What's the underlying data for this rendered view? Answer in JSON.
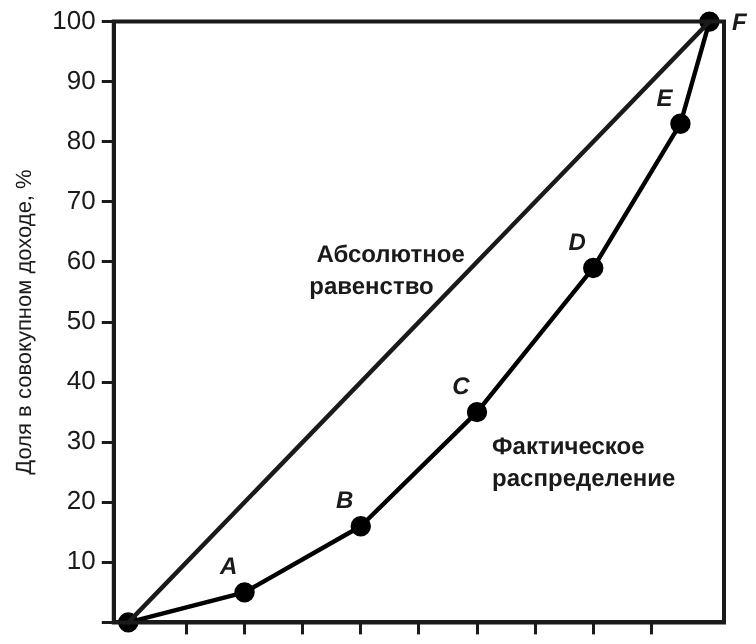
{
  "chart_data": {
    "type": "line",
    "ylabel": "Доля в совокупном доходе, %",
    "categories": [
      null,
      null,
      null,
      null,
      null,
      null,
      null,
      null,
      null,
      null,
      null,
      null,
      null,
      null,
      null,
      null,
      null,
      null,
      null,
      null,
      null
    ],
    "ylim": [
      0,
      100
    ],
    "yticks": [
      {
        "value": 0,
        "label": null
      },
      10,
      20,
      30,
      40,
      50,
      60,
      70,
      80,
      90,
      100
    ],
    "tick_labels": "y",
    "grid": false,
    "legend": false,
    "line_style": "solid",
    "series": [
      {
        "name": "Абсолютное равенство",
        "color": "#1a1a1a",
        "marker": "none",
        "values": [
          0,
          null,
          null,
          null,
          null,
          null,
          null,
          null,
          null,
          null,
          null,
          null,
          null,
          null,
          null,
          null,
          null,
          null,
          null,
          null,
          100
        ]
      },
      {
        "name": "Фактическое распределение",
        "color": "#000000",
        "marker": "circle",
        "values": [
          0,
          null,
          null,
          null,
          5,
          null,
          null,
          null,
          16,
          null,
          null,
          null,
          35,
          null,
          null,
          null,
          59,
          null,
          null,
          83,
          100
        ],
        "value_labels": [
          null,
          null,
          null,
          null,
          "A",
          null,
          null,
          null,
          "B",
          null,
          null,
          null,
          "C",
          null,
          null,
          null,
          "D",
          null,
          null,
          "E",
          "F"
        ]
      }
    ]
  }
}
